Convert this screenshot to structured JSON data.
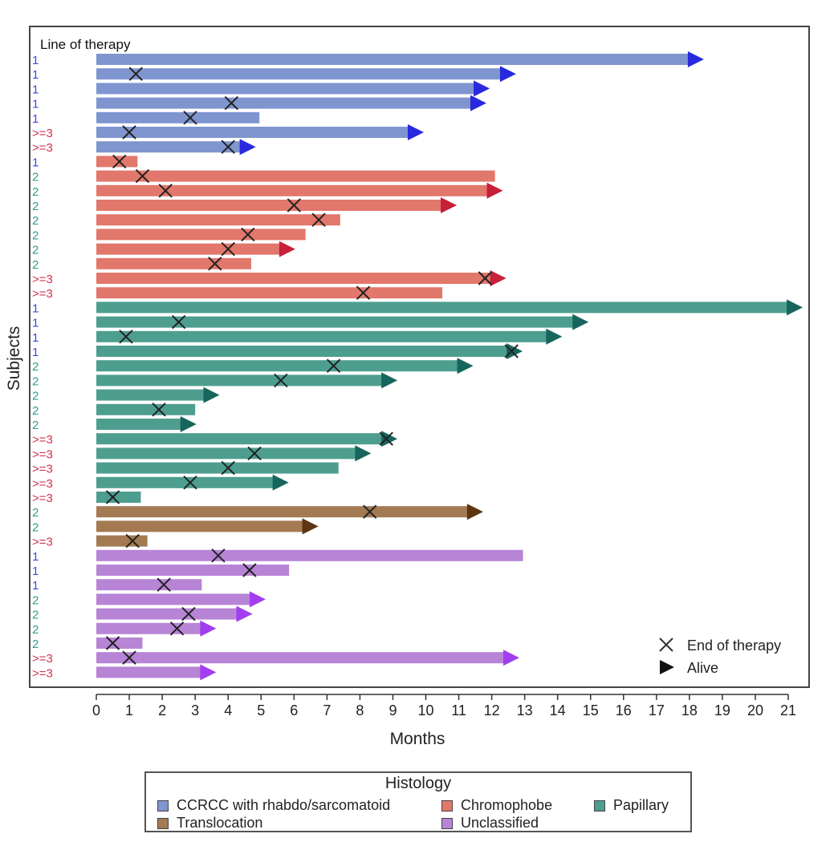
{
  "chart_data": {
    "type": "bar",
    "orientation": "horizontal swimmer plot",
    "panel_label": "Line of therapy",
    "xlabel": "Months",
    "ylabel": "Subjects",
    "xlim": [
      0,
      21
    ],
    "xticks": [
      "0",
      "1",
      "2",
      "3",
      "4",
      "5",
      "6",
      "7",
      "8",
      "9",
      "10",
      "11",
      "12",
      "13",
      "14",
      "15",
      "16",
      "17",
      "18",
      "19",
      "20",
      "21"
    ],
    "symbol_legend": [
      {
        "symbol": "cross",
        "label": "End of therapy"
      },
      {
        "symbol": "arrow",
        "label": "Alive"
      }
    ],
    "legend_title": "Histology",
    "groups": [
      {
        "name": "CCRCC with rhabdo/sarcomatoid",
        "color": "#7f95cf",
        "arrow_color": "#2929e0",
        "text_color": "#4a53d6"
      },
      {
        "name": "Chromophobe",
        "color": "#e2776c",
        "arrow_color": "#c8203a",
        "text_color": "#d94a4a"
      },
      {
        "name": "Papillary",
        "color": "#4d9e8f",
        "arrow_color": "#17665d",
        "text_color": "#2e9e8f"
      },
      {
        "name": "Translocation",
        "color": "#a37a52",
        "arrow_color": "#5c3511",
        "text_color": "#7a5230"
      },
      {
        "name": "Unclassified",
        "color": "#b784d6",
        "arrow_color": "#a23ef0",
        "text_color": "#9b59c9"
      }
    ],
    "line_colors": {
      "1": "#3a46e8",
      "2": "#2e9e8f",
      ">=3": "#d9304f"
    },
    "subjects": [
      {
        "group": 0,
        "line": "1",
        "months": 18.0,
        "end": null,
        "alive": true
      },
      {
        "group": 0,
        "line": "1",
        "months": 12.3,
        "end": 1.2,
        "alive": true
      },
      {
        "group": 0,
        "line": "1",
        "months": 11.5,
        "end": null,
        "alive": true
      },
      {
        "group": 0,
        "line": "1",
        "months": 11.4,
        "end": 4.1,
        "alive": true
      },
      {
        "group": 0,
        "line": "1",
        "months": 4.95,
        "end": 2.85,
        "alive": false
      },
      {
        "group": 0,
        "line": ">=3",
        "months": 9.5,
        "end": 1.0,
        "alive": true
      },
      {
        "group": 0,
        "line": ">=3",
        "months": 4.4,
        "end": 4.0,
        "alive": true
      },
      {
        "group": 1,
        "line": "1",
        "months": 1.25,
        "end": 0.7,
        "alive": false
      },
      {
        "group": 1,
        "line": "2",
        "months": 12.1,
        "end": 1.4,
        "alive": false
      },
      {
        "group": 1,
        "line": "2",
        "months": 11.9,
        "end": 2.1,
        "alive": true
      },
      {
        "group": 1,
        "line": "2",
        "months": 10.5,
        "end": 6.0,
        "alive": true
      },
      {
        "group": 1,
        "line": "2",
        "months": 7.4,
        "end": 6.75,
        "alive": false
      },
      {
        "group": 1,
        "line": "2",
        "months": 6.35,
        "end": 4.6,
        "alive": false
      },
      {
        "group": 1,
        "line": "2",
        "months": 5.6,
        "end": 4.0,
        "alive": true
      },
      {
        "group": 1,
        "line": "2",
        "months": 4.7,
        "end": 3.6,
        "alive": false
      },
      {
        "group": 1,
        "line": ">=3",
        "months": 12.0,
        "end": 11.8,
        "alive": true
      },
      {
        "group": 1,
        "line": ">=3",
        "months": 10.5,
        "end": 8.1,
        "alive": false
      },
      {
        "group": 2,
        "line": "1",
        "months": 21.0,
        "end": null,
        "alive": true
      },
      {
        "group": 2,
        "line": "1",
        "months": 14.5,
        "end": 2.5,
        "alive": true
      },
      {
        "group": 2,
        "line": "1",
        "months": 13.7,
        "end": 0.9,
        "alive": true
      },
      {
        "group": 2,
        "line": "1",
        "months": 12.5,
        "end": 12.6,
        "alive": true
      },
      {
        "group": 2,
        "line": "2",
        "months": 11.0,
        "end": 7.2,
        "alive": true
      },
      {
        "group": 2,
        "line": "2",
        "months": 8.7,
        "end": 5.6,
        "alive": true
      },
      {
        "group": 2,
        "line": "2",
        "months": 3.3,
        "end": null,
        "alive": true
      },
      {
        "group": 2,
        "line": "2",
        "months": 3.0,
        "end": 1.9,
        "alive": false
      },
      {
        "group": 2,
        "line": "2",
        "months": 2.6,
        "end": null,
        "alive": true
      },
      {
        "group": 2,
        "line": ">=3",
        "months": 8.7,
        "end": 8.8,
        "alive": true
      },
      {
        "group": 2,
        "line": ">=3",
        "months": 7.9,
        "end": 4.8,
        "alive": true
      },
      {
        "group": 2,
        "line": ">=3",
        "months": 7.35,
        "end": 4.0,
        "alive": false
      },
      {
        "group": 2,
        "line": ">=3",
        "months": 5.4,
        "end": 2.85,
        "alive": true
      },
      {
        "group": 2,
        "line": ">=3",
        "months": 1.35,
        "end": 0.5,
        "alive": false
      },
      {
        "group": 3,
        "line": "2",
        "months": 11.3,
        "end": 8.3,
        "alive": true
      },
      {
        "group": 3,
        "line": "2",
        "months": 6.3,
        "end": null,
        "alive": true
      },
      {
        "group": 3,
        "line": ">=3",
        "months": 1.55,
        "end": 1.1,
        "alive": false
      },
      {
        "group": 4,
        "line": "1",
        "months": 12.95,
        "end": 3.7,
        "alive": false
      },
      {
        "group": 4,
        "line": "1",
        "months": 5.85,
        "end": 4.65,
        "alive": false
      },
      {
        "group": 4,
        "line": "1",
        "months": 3.2,
        "end": 2.05,
        "alive": false
      },
      {
        "group": 4,
        "line": "2",
        "months": 4.7,
        "end": null,
        "alive": true
      },
      {
        "group": 4,
        "line": "2",
        "months": 4.3,
        "end": 2.8,
        "alive": true
      },
      {
        "group": 4,
        "line": "2",
        "months": 3.2,
        "end": 2.45,
        "alive": true
      },
      {
        "group": 4,
        "line": "2",
        "months": 1.4,
        "end": 0.5,
        "alive": false
      },
      {
        "group": 4,
        "line": ">=3",
        "months": 12.4,
        "end": 1.0,
        "alive": true
      },
      {
        "group": 4,
        "line": ">=3",
        "months": 3.2,
        "end": null,
        "alive": true
      }
    ]
  }
}
